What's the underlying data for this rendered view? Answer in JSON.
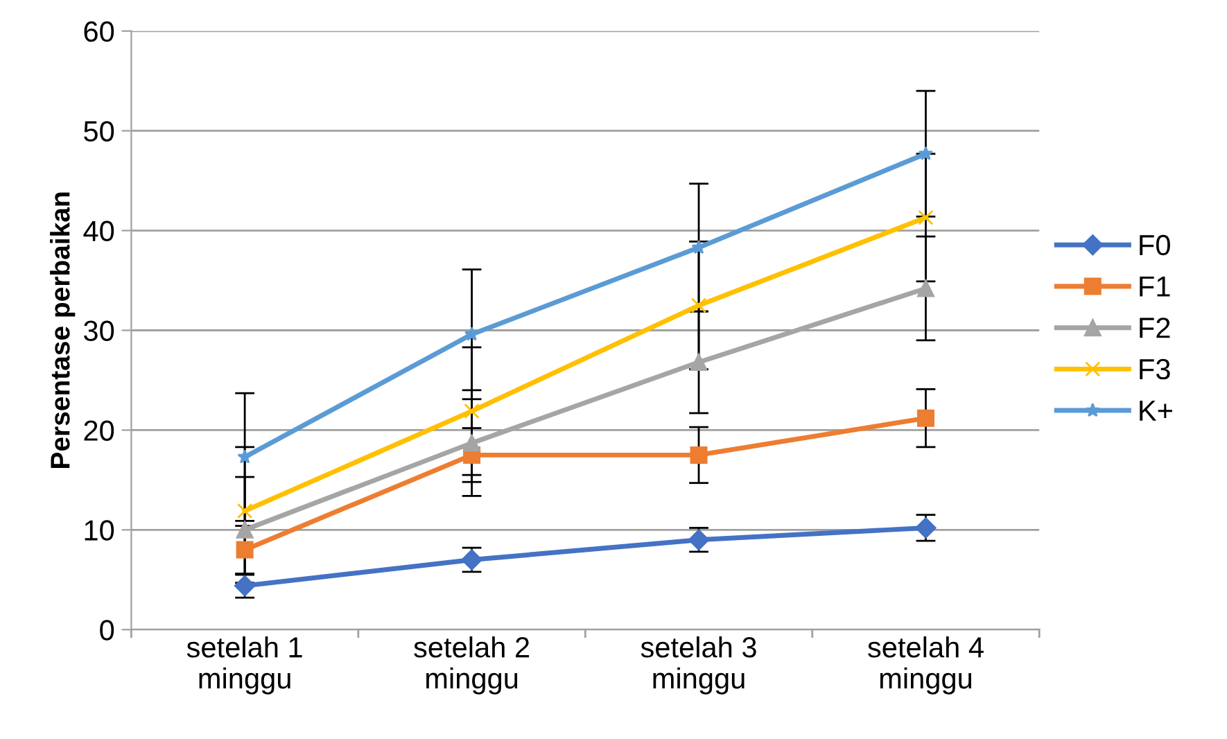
{
  "chart_data": {
    "type": "line",
    "ylabel": "Persentase perbaikan",
    "categories": [
      "setelah 1\nminggu",
      "setelah 2\nminggu",
      "setelah 3\nminggu",
      "setelah 4\nminggu"
    ],
    "series": [
      {
        "name": "F0",
        "color": "#4472c4",
        "marker": "diamond",
        "values": [
          4.4,
          7.0,
          9.0,
          10.2
        ],
        "errors": [
          1.2,
          1.2,
          1.2,
          1.3
        ]
      },
      {
        "name": "F1",
        "color": "#ed7d31",
        "marker": "square",
        "values": [
          8.0,
          17.5,
          17.5,
          21.2
        ],
        "errors": [
          2.4,
          2.7,
          2.8,
          2.9
        ]
      },
      {
        "name": "F2",
        "color": "#a5a5a5",
        "marker": "triangle",
        "values": [
          10.0,
          18.7,
          26.8,
          34.2
        ],
        "errors": [
          5.3,
          5.3,
          5.1,
          5.2
        ]
      },
      {
        "name": "F3",
        "color": "#ffc000",
        "marker": "cross",
        "values": [
          11.9,
          21.9,
          32.5,
          41.3
        ],
        "errors": [
          6.4,
          6.4,
          6.4,
          6.4
        ]
      },
      {
        "name": "K+",
        "color": "#5b9bd5",
        "marker": "star",
        "values": [
          17.3,
          29.6,
          38.3,
          47.7
        ],
        "errors": [
          6.4,
          6.5,
          6.4,
          6.3
        ]
      }
    ],
    "ylim": [
      0,
      60
    ],
    "yticks": [
      0,
      10,
      20,
      30,
      40,
      50,
      60
    ],
    "grid": "y",
    "legend": "right"
  }
}
